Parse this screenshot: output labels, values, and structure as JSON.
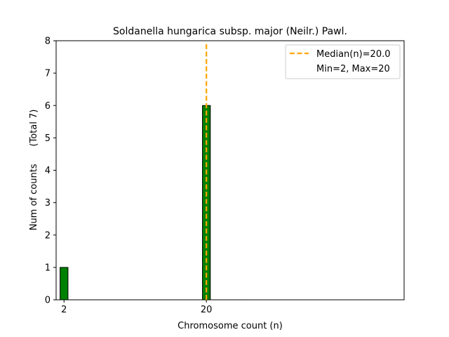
{
  "chart_data": {
    "type": "bar",
    "title": "Soldanella hungarica subsp. major (Neilr.) Pawl.",
    "xlabel": "Chromosome count (n)",
    "ylabel": "Num of counts      (Total 7)",
    "xlim": [
      1,
      45
    ],
    "ylim": [
      0,
      8
    ],
    "xticks": [
      2,
      20
    ],
    "yticks": [
      0,
      1,
      2,
      3,
      4,
      5,
      6,
      7,
      8
    ],
    "bars": [
      {
        "x": 2,
        "value": 1
      },
      {
        "x": 20,
        "value": 6
      }
    ],
    "bar_color": "#008000",
    "bar_edge_color": "#000000",
    "median": 20.0,
    "median_color": "#ffa500",
    "legend": {
      "position": "top-right",
      "entries": [
        "Median(n)=20.0",
        "Min=2, Max=20"
      ]
    },
    "grid": false
  }
}
